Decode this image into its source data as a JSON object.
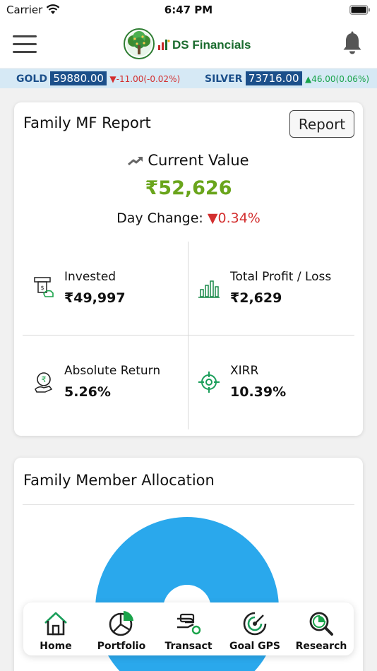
{
  "status_bar": {
    "carrier": "Carrier",
    "time": "6:47 PM"
  },
  "header": {
    "app_name": "DS Financials"
  },
  "ticker": {
    "gold": {
      "label": "GOLD",
      "value": "59880.00",
      "change": "-11.00(-0.02%)"
    },
    "silver": {
      "label": "SILVER",
      "value": "73716.00",
      "change": "46.00(0.06%)"
    }
  },
  "report_card": {
    "title": "Family MF Report",
    "report_button": "Report",
    "current_value_label": "Current Value",
    "current_value": "₹52,626",
    "day_change_label": "Day Change:",
    "day_change_value": "0.34%",
    "stats": [
      {
        "label": "Invested",
        "value": "₹49,997",
        "icon": "invested-icon"
      },
      {
        "label": "Total Profit / Loss",
        "value": "₹2,629",
        "icon": "bar-chart-icon"
      },
      {
        "label": "Absolute Return",
        "value": "5.26%",
        "icon": "rupee-hand-icon"
      },
      {
        "label": "XIRR",
        "value": "10.39%",
        "icon": "target-icon"
      }
    ]
  },
  "allocation_card": {
    "title": "Family Member Allocation"
  },
  "bottom_nav": [
    {
      "label": "Home",
      "icon": "home-icon"
    },
    {
      "label": "Portfolio",
      "icon": "pie-chart-icon"
    },
    {
      "label": "Transact",
      "icon": "transact-icon"
    },
    {
      "label": "Goal GPS",
      "icon": "goal-gps-icon"
    },
    {
      "label": "Research",
      "icon": "research-icon"
    }
  ],
  "colors": {
    "brand_green": "#1a6b2e",
    "value_green": "#6aa51c",
    "ticker_blue": "#1b4f8a",
    "ticker_bg": "#d6e9f5",
    "down_red": "#d32f2f",
    "up_green": "#18a34a",
    "donut_blue": "#2aa8ec"
  }
}
